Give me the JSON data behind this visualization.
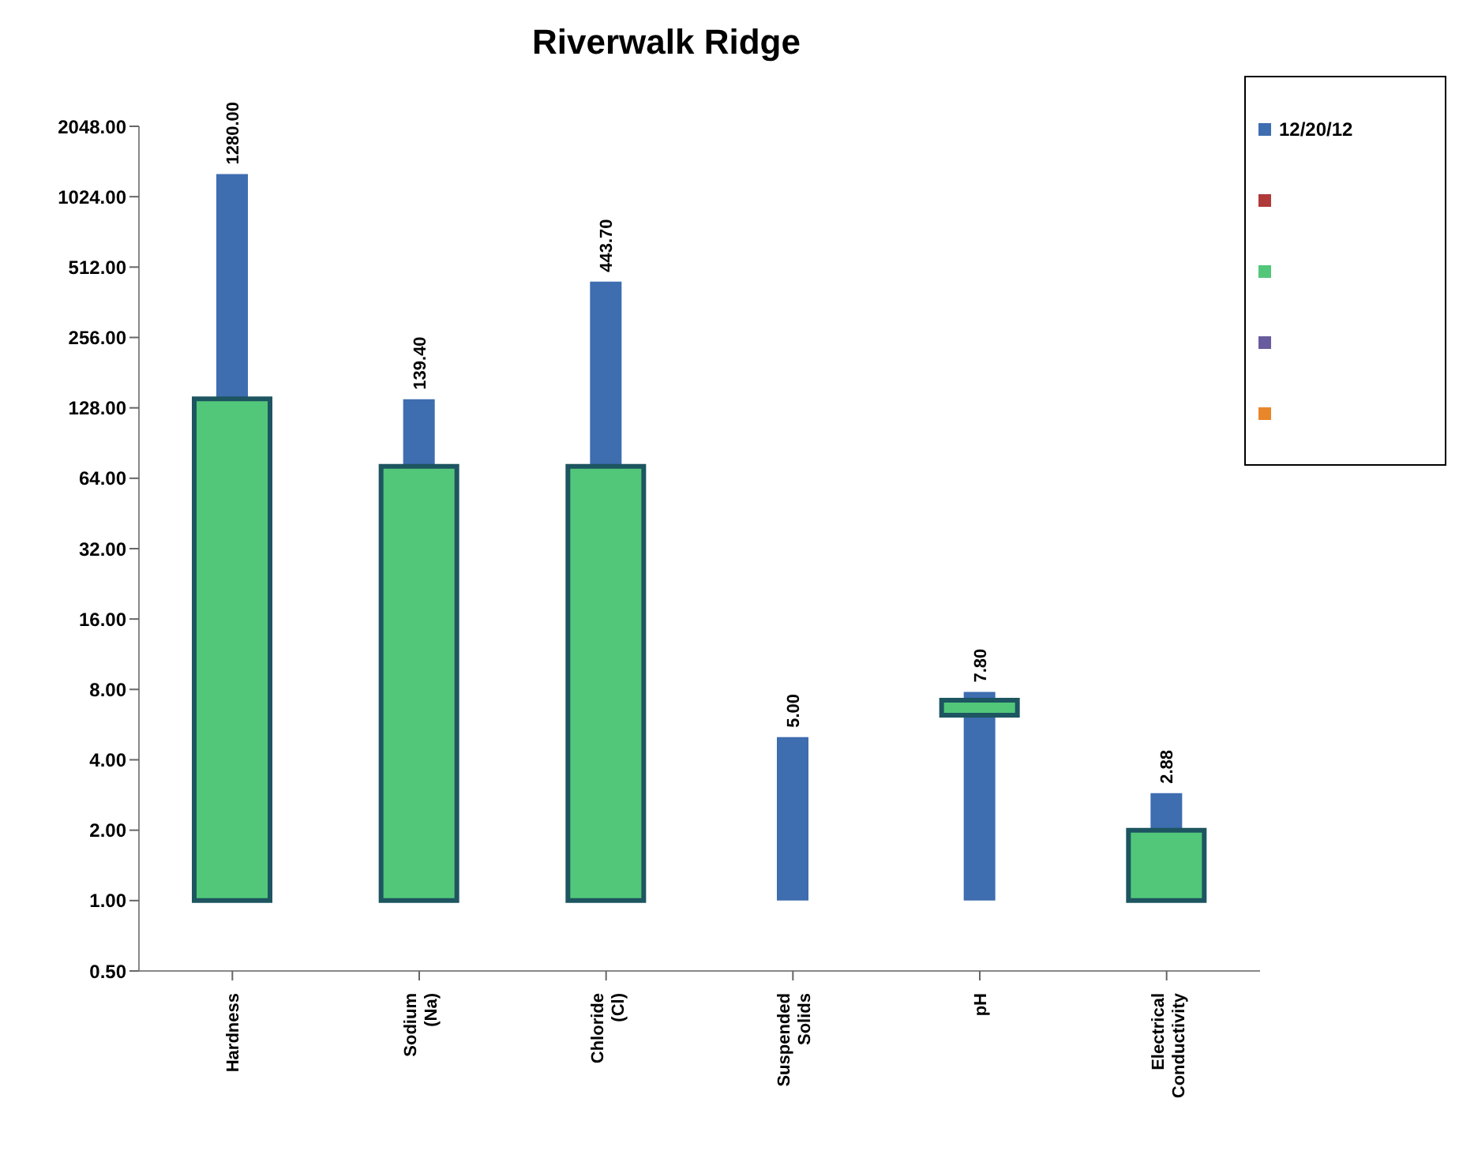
{
  "chart_data": {
    "type": "bar",
    "title": "Riverwalk Ridge",
    "log": "y",
    "categories": [
      "Hardness",
      "Sodium (Na)",
      "Chloride (Cl)",
      "Suspended Solids",
      "pH",
      "Electrical Conductivity"
    ],
    "ylim": [
      0.5,
      2048
    ],
    "yticks": [
      {
        "value": 0.5,
        "label": "0.50"
      },
      {
        "value": 1,
        "label": "1.00"
      },
      {
        "value": 2,
        "label": "2.00"
      },
      {
        "value": 4,
        "label": "4.00"
      },
      {
        "value": 8,
        "label": "8.00"
      },
      {
        "value": 16,
        "label": "16.00"
      },
      {
        "value": 32,
        "label": "32.00"
      },
      {
        "value": 64,
        "label": "64.00"
      },
      {
        "value": 128,
        "label": "128.00"
      },
      {
        "value": 256,
        "label": "256.00"
      },
      {
        "value": 512,
        "label": "512.00"
      },
      {
        "value": 1024,
        "label": "1024.00"
      },
      {
        "value": 2048,
        "label": "2048.00"
      }
    ],
    "legend": "top right",
    "series": [
      {
        "name": "12/20/12",
        "color": "#3e6db0",
        "base": [
          1,
          1,
          1,
          1,
          1,
          1
        ],
        "values": [
          1279,
          138.4,
          442.7,
          4,
          6.8,
          1.88
        ],
        "value_labels": [
          "1280.00",
          "139.40",
          "443.70",
          "5.00",
          "7.80",
          "2.88"
        ]
      },
      {
        "color": "#b03a3a",
        "values": [
          null,
          null,
          null,
          null,
          null,
          null
        ]
      },
      {
        "color": "#52c77a",
        "base": [
          1,
          1,
          1,
          null,
          6.2,
          1
        ],
        "values": [
          139,
          71,
          71,
          null,
          1,
          1
        ]
      },
      {
        "color": "#6a5a9e",
        "values": [
          null,
          null,
          null,
          null,
          null,
          null
        ]
      },
      {
        "color": "#e8862a",
        "values": [
          null,
          null,
          null,
          null,
          null,
          null
        ]
      }
    ]
  }
}
